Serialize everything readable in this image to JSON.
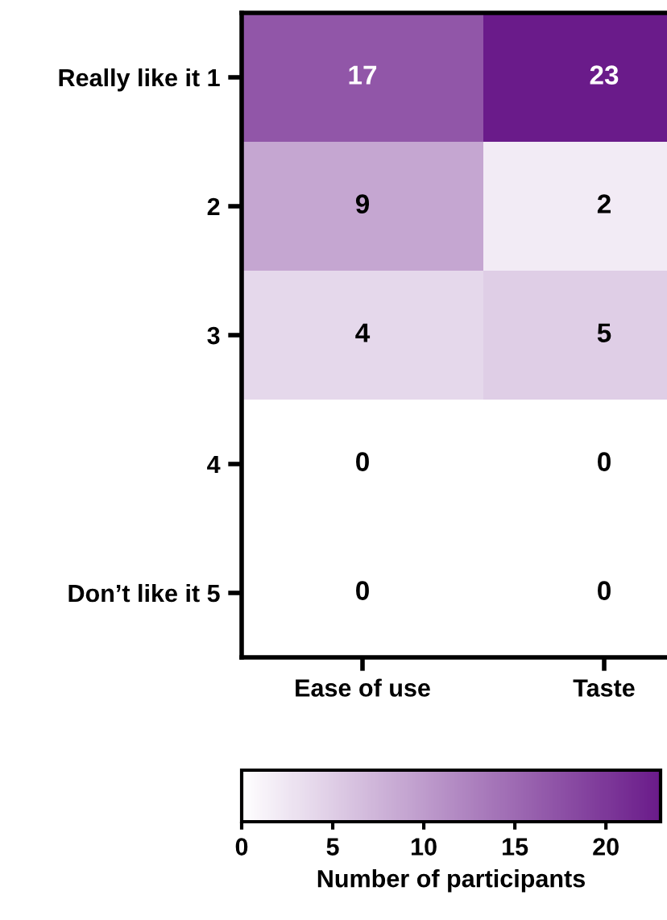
{
  "chart_data": {
    "type": "heatmap",
    "categories": [
      "Ease of use",
      "Taste"
    ],
    "y_categories": [
      "Really like it 1",
      "2",
      "3",
      "4",
      "Don’t like it 5"
    ],
    "cells": [
      [
        17,
        23
      ],
      [
        9,
        2
      ],
      [
        4,
        5
      ],
      [
        0,
        0
      ],
      [
        0,
        0
      ]
    ],
    "data_labels": true,
    "clim": [
      0,
      23
    ],
    "cticks": [
      0,
      5,
      10,
      15,
      20
    ],
    "clabel": "Number of participants",
    "color": "#6a1b8a"
  }
}
